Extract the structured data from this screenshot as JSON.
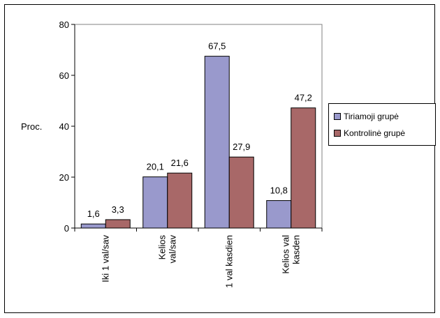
{
  "chart_data": {
    "type": "bar",
    "categories": [
      "Iki 1 val/sav",
      "Kelios val/sav",
      "1 val kasdien",
      "Kelios val kasden"
    ],
    "category_lines": [
      [
        "Iki 1 val/sav"
      ],
      [
        "Kelios",
        "val/sav"
      ],
      [
        "1 val kasdien"
      ],
      [
        "Kelios val",
        "kasden"
      ]
    ],
    "series": [
      {
        "name": "Tiriamoji grupė",
        "values": [
          1.6,
          20.1,
          67.5,
          10.8
        ],
        "labels": [
          "1,6",
          "20,1",
          "67,5",
          "10,8"
        ],
        "color": "#9999cc"
      },
      {
        "name": "Kontrolinė grupė",
        "values": [
          3.3,
          21.6,
          27.9,
          47.2
        ],
        "labels": [
          "3,3",
          "21,6",
          "27,9",
          "47,2"
        ],
        "color": "#a86868"
      }
    ],
    "ylabel": "Proc.",
    "ylim": [
      0,
      80
    ],
    "yticks": [
      0,
      20,
      40,
      60,
      80
    ],
    "grid": false,
    "plot_background": "#ffffff",
    "legend_position": "right"
  }
}
